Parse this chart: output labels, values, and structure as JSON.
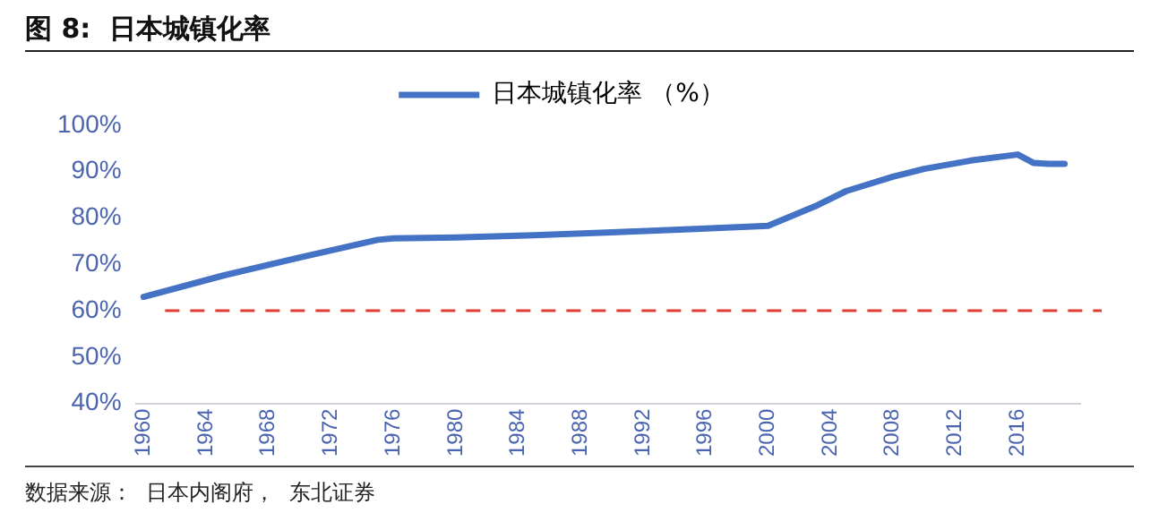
{
  "chart_data": {
    "type": "line",
    "title": "图 8:  日本城镇化率",
    "annotations": [
      "数据来源：  日本内阁府，  东北证券"
    ],
    "x": [
      1960,
      1965,
      1970,
      1975,
      1976,
      1980,
      1985,
      1990,
      1995,
      2000,
      2003,
      2005,
      2008,
      2010,
      2013,
      2016,
      2017,
      2018,
      2019
    ],
    "series": [
      {
        "name": "日本城镇化率 （%）",
        "color": "#4472c4",
        "values": [
          63,
          67.5,
          71.5,
          75.3,
          75.6,
          75.8,
          76.3,
          76.9,
          77.6,
          78.3,
          82.5,
          85.8,
          88.9,
          90.6,
          92.4,
          93.7,
          91.9,
          91.7,
          91.7
        ]
      }
    ],
    "xlim": [
      1959.5,
      2020
    ],
    "xticks": [
      1960,
      1964,
      1968,
      1972,
      1976,
      1980,
      1984,
      1988,
      1992,
      1996,
      2000,
      2004,
      2008,
      2012,
      2016
    ],
    "ylim": [
      40,
      100
    ],
    "yticks": [
      {
        "value": 40,
        "label": "40%"
      },
      {
        "value": 50,
        "label": "50%"
      },
      {
        "value": 60,
        "label": "60%"
      },
      {
        "value": 70,
        "label": "70%"
      },
      {
        "value": 80,
        "label": "80%"
      },
      {
        "value": 90,
        "label": "90%"
      },
      {
        "value": 100,
        "label": "100%"
      }
    ],
    "ref_lines": [
      {
        "axis": "y",
        "value": 60,
        "color": "#e03c31",
        "line_style": "dashed"
      }
    ],
    "grid": false,
    "legend": "top",
    "marker": "none",
    "line_style": "solid"
  }
}
